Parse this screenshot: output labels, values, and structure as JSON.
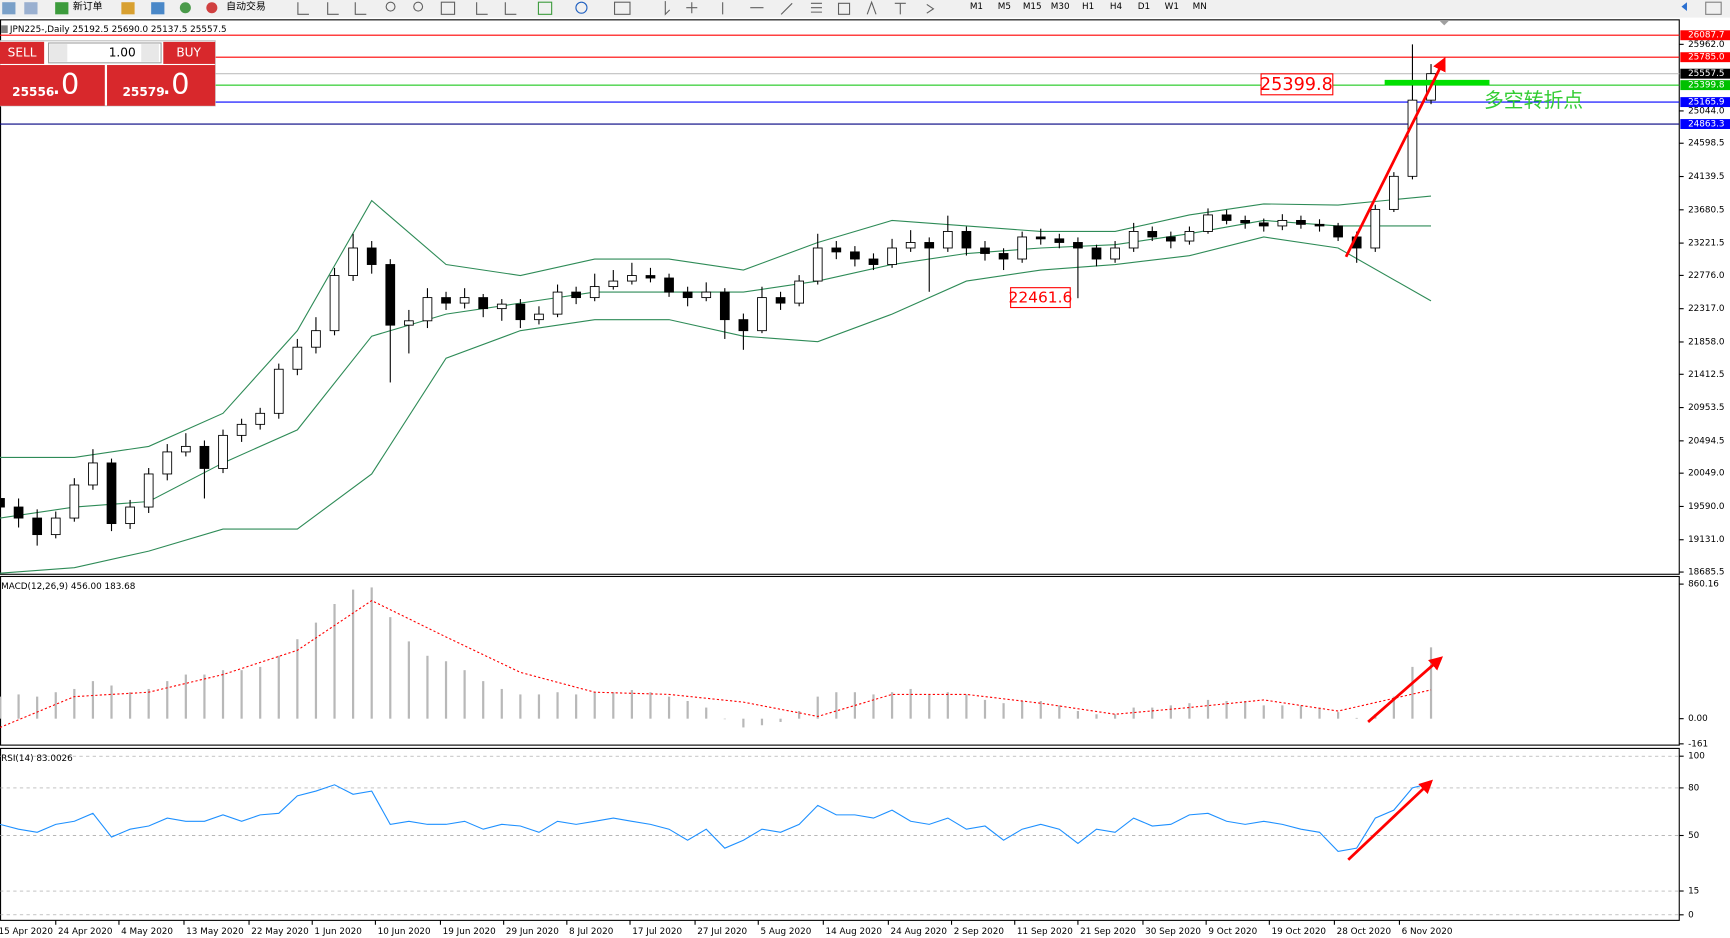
{
  "toolbar": {
    "new_order": "新订单",
    "auto_trading": "自动交易",
    "timeframes": [
      "M1",
      "M5",
      "M15",
      "M30",
      "H1",
      "H4",
      "D1",
      "W1",
      "MN"
    ]
  },
  "trade_panel": {
    "sell": "SELL",
    "buy": "BUY",
    "volume": "1.00",
    "bid_main": "25556",
    "bid_frac": ".0",
    "ask_main": "25579",
    "ask_frac": ".0"
  },
  "chart_data": [
    {
      "type": "candlestick",
      "title": "JPN225-,Daily  25192.5 25690.0 25137.5 25557.5",
      "xlim": [
        0,
        90
      ],
      "ylim": [
        18655,
        26300
      ],
      "xticks": [
        {
          "value": -0.2,
          "label": "15 Apr 2020"
        },
        {
          "value": 3,
          "label": "24 Apr 2020"
        },
        {
          "value": 6.4,
          "label": "4 May 2020"
        },
        {
          "value": 9.9,
          "label": "13 May 2020"
        },
        {
          "value": 13.4,
          "label": "22 May 2020"
        },
        {
          "value": 16.8,
          "label": "1 Jun 2020"
        },
        {
          "value": 20.2,
          "label": "10 Jun 2020"
        },
        {
          "value": 23.7,
          "label": "19 Jun 2020"
        },
        {
          "value": 27.1,
          "label": "29 Jun 2020"
        },
        {
          "value": 30.5,
          "label": "8 Jul 2020"
        },
        {
          "value": 33.9,
          "label": "17 Jul 2020"
        },
        {
          "value": 37.4,
          "label": "27 Jul 2020"
        },
        {
          "value": 40.8,
          "label": "5 Aug 2020"
        },
        {
          "value": 44.3,
          "label": "14 Aug 2020"
        },
        {
          "value": 47.8,
          "label": "24 Aug 2020"
        },
        {
          "value": 51.2,
          "label": "2 Sep 2020"
        },
        {
          "value": 54.6,
          "label": "11 Sep 2020"
        },
        {
          "value": 58,
          "label": "21 Sep 2020"
        },
        {
          "value": 61.5,
          "label": "30 Sep 2020"
        },
        {
          "value": 64.9,
          "label": "9 Oct 2020"
        },
        {
          "value": 68.3,
          "label": "19 Oct 2020"
        },
        {
          "value": 71.8,
          "label": "28 Oct 2020"
        },
        {
          "value": 75.3,
          "label": "6 Nov 2020"
        }
      ],
      "yticks": [
        {
          "value": 25962,
          "label": "25962.0"
        },
        {
          "value": 25044,
          "label": "25044.0"
        },
        24598.5,
        24139.5,
        23680.5,
        23221.5,
        {
          "value": 22776,
          "label": "22776.0"
        },
        {
          "value": 22317,
          "label": "22317.0"
        },
        {
          "value": 21858,
          "label": "21858.0"
        },
        21412.5,
        20953.5,
        20494.5,
        {
          "value": 20049,
          "label": "20049.0"
        },
        {
          "value": 19590,
          "label": "19590.0"
        },
        {
          "value": 19131,
          "label": "19131.0"
        },
        18685.5
      ],
      "candles": [
        [
          19700,
          19850,
          19450,
          19582
        ],
        [
          19582,
          19700,
          19300,
          19430
        ],
        [
          19430,
          19550,
          19050,
          19202
        ],
        [
          19202,
          19520,
          19150,
          19430
        ],
        [
          19430,
          19980,
          19380,
          19886
        ],
        [
          19886,
          20380,
          19820,
          20190
        ],
        [
          20190,
          20250,
          19250,
          19354
        ],
        [
          19354,
          19680,
          19280,
          19582
        ],
        [
          19582,
          20120,
          19500,
          20038
        ],
        [
          20038,
          20450,
          19950,
          20342
        ],
        [
          20342,
          20600,
          20280,
          20418
        ],
        [
          20418,
          20500,
          19700,
          20114
        ],
        [
          20114,
          20650,
          20050,
          20570
        ],
        [
          20570,
          20800,
          20480,
          20722
        ],
        [
          20722,
          20950,
          20650,
          20874
        ],
        [
          20874,
          21560,
          20800,
          21482
        ],
        [
          21482,
          21900,
          21400,
          21786
        ],
        [
          21786,
          22200,
          21700,
          22014
        ],
        [
          22014,
          22880,
          21950,
          22774
        ],
        [
          22774,
          23350,
          22700,
          23154
        ],
        [
          23154,
          23250,
          22800,
          22926
        ],
        [
          22926,
          23000,
          21300,
          22090
        ],
        [
          22090,
          22300,
          21700,
          22150
        ],
        [
          22150,
          22600,
          22050,
          22470
        ],
        [
          22470,
          22550,
          22300,
          22394
        ],
        [
          22394,
          22600,
          22320,
          22470
        ],
        [
          22470,
          22520,
          22200,
          22318
        ],
        [
          22318,
          22450,
          22150,
          22380
        ],
        [
          22380,
          22450,
          22050,
          22166
        ],
        [
          22166,
          22350,
          22100,
          22242
        ],
        [
          22242,
          22650,
          22200,
          22546
        ],
        [
          22546,
          22620,
          22380,
          22470
        ],
        [
          22470,
          22800,
          22420,
          22622
        ],
        [
          22622,
          22850,
          22580,
          22698
        ],
        [
          22698,
          22950,
          22650,
          22774
        ],
        [
          22774,
          22880,
          22680,
          22740
        ],
        [
          22740,
          22800,
          22480,
          22546
        ],
        [
          22546,
          22620,
          22350,
          22470
        ],
        [
          22470,
          22680,
          22420,
          22546
        ],
        [
          22546,
          22600,
          21900,
          22166
        ],
        [
          22166,
          22250,
          21750,
          22014
        ],
        [
          22014,
          22620,
          21980,
          22470
        ],
        [
          22470,
          22550,
          22300,
          22394
        ],
        [
          22394,
          22780,
          22350,
          22698
        ],
        [
          22698,
          23350,
          22650,
          23154
        ],
        [
          23154,
          23250,
          23000,
          23100
        ],
        [
          23100,
          23180,
          22900,
          23002
        ],
        [
          23002,
          23080,
          22850,
          22926
        ],
        [
          22926,
          23280,
          22880,
          23154
        ],
        [
          23154,
          23400,
          23100,
          23230
        ],
        [
          23230,
          23300,
          22550,
          23154
        ],
        [
          23154,
          23600,
          23100,
          23382
        ],
        [
          23382,
          23450,
          23050,
          23154
        ],
        [
          23154,
          23250,
          22980,
          23078
        ],
        [
          23078,
          23150,
          22850,
          23002
        ],
        [
          23002,
          23380,
          22950,
          23306
        ],
        [
          23306,
          23420,
          23200,
          23280
        ],
        [
          23280,
          23350,
          23150,
          23230
        ],
        [
          23230,
          23300,
          22461.6,
          23154
        ],
        [
          23154,
          23200,
          22900,
          23002
        ],
        [
          23002,
          23250,
          22950,
          23154
        ],
        [
          23154,
          23500,
          23100,
          23382
        ],
        [
          23382,
          23450,
          23250,
          23306
        ],
        [
          23306,
          23380,
          23150,
          23250
        ],
        [
          23250,
          23450,
          23200,
          23382
        ],
        [
          23382,
          23700,
          23350,
          23610
        ],
        [
          23610,
          23680,
          23480,
          23534
        ],
        [
          23534,
          23600,
          23420,
          23500
        ],
        [
          23500,
          23560,
          23380,
          23458
        ],
        [
          23458,
          23620,
          23400,
          23534
        ],
        [
          23534,
          23600,
          23420,
          23480
        ],
        [
          23480,
          23550,
          23380,
          23458
        ],
        [
          23458,
          23500,
          23250,
          23306
        ],
        [
          23306,
          23380,
          22950,
          23154
        ],
        [
          23154,
          23750,
          23100,
          23686
        ],
        [
          23686,
          24200,
          23650,
          24142
        ],
        [
          24142,
          25962,
          24100,
          25192.5
        ],
        [
          25192.5,
          25690,
          25137.5,
          25557.5
        ]
      ],
      "bands": {
        "color": "#2e8b57",
        "x": [
          0,
          4,
          8,
          12,
          16,
          20,
          24,
          28,
          32,
          36,
          40,
          44,
          48,
          52,
          56,
          60,
          64,
          68,
          72,
          77
        ],
        "upper": [
          20266,
          20266,
          20418,
          20874,
          22014,
          23808,
          22926,
          22774,
          23002,
          23002,
          22850,
          23230,
          23534,
          23458,
          23382,
          23382,
          23610,
          23762,
          23747,
          23869
        ],
        "middle": [
          19430,
          19582,
          19658,
          20190,
          20646,
          21938,
          22242,
          22394,
          22546,
          22546,
          22546,
          22698,
          22926,
          23078,
          23154,
          23200,
          23352,
          23534,
          23458,
          23458
        ],
        "lower": [
          18670,
          18746,
          18974,
          19278,
          19278,
          20038,
          21634,
          22014,
          22166,
          22166,
          21938,
          21862,
          22242,
          22698,
          22850,
          22926,
          23048,
          23306,
          23154,
          22425
        ]
      },
      "levels": [
        {
          "value": 26087.7,
          "color": "#ff0000",
          "line_color": "#ff0000"
        },
        {
          "value": 25785,
          "label": "25785.0",
          "color": "#ff0000",
          "line_color": "#ff0000"
        },
        {
          "value": 25557.5,
          "color": "#000000",
          "line_color": "#c0c0c0"
        },
        {
          "value": 25399.8,
          "color": "#00c000",
          "line_color": "#00c000"
        },
        {
          "value": 25165.9,
          "color": "#0000ff",
          "line_color": "#0000ff"
        },
        {
          "value": 24863.3,
          "color": "#0000ff",
          "line_color": "#000080"
        }
      ],
      "annotations": [
        {
          "text": "25399.8"
        },
        {
          "text": "22461.6"
        },
        {
          "text": "多空转折点"
        }
      ]
    },
    {
      "type": "macd",
      "title": "MACD(12,26,9) 456.00 183.68",
      "xlim": [
        0,
        90
      ],
      "ylim": [
        -169,
        909
      ],
      "yticks": [
        860.16,
        {
          "value": 0,
          "label": "0.00"
        },
        -161
      ],
      "histogram": {
        "color": "#b8b8b8",
        "values": [
          141,
          155,
          141,
          169,
          190,
          240,
          212,
          169,
          190,
          240,
          282,
          282,
          310,
          310,
          331,
          402,
          508,
          614,
          733,
          825,
          839,
          649,
          494,
          402,
          367,
          310,
          240,
          190,
          155,
          155,
          169,
          155,
          169,
          169,
          183,
          169,
          141,
          113,
          71,
          0,
          -56,
          -42,
          -21,
          49,
          141,
          169,
          169,
          155,
          169,
          190,
          155,
          169,
          155,
          120,
          99,
          113,
          113,
          85,
          49,
          28,
          28,
          71,
          71,
          85,
          99,
          120,
          113,
          113,
          85,
          85,
          85,
          71,
          42,
          5,
          28,
          141,
          331,
          456
        ]
      },
      "signal": {
        "color": "#ff0000",
        "x": [
          0,
          4,
          8,
          12,
          16,
          20,
          24,
          28,
          32,
          36,
          40,
          44,
          48,
          52,
          56,
          60,
          64,
          68,
          72,
          77
        ],
        "values": [
          -56,
          141,
          169,
          282,
          437,
          755,
          522,
          296,
          169,
          155,
          106,
          14,
          155,
          155,
          99,
          28,
          71,
          120,
          49,
          183.68
        ]
      }
    },
    {
      "type": "rsi",
      "title": "RSI(14) 83.0026",
      "xlim": [
        0,
        90
      ],
      "ylim": [
        -3.5,
        104.9
      ],
      "yticks": [
        100,
        80,
        50,
        15,
        0
      ],
      "series": {
        "color": "#1e90ff",
        "values": [
          57,
          54,
          52,
          57,
          59,
          64,
          49,
          54,
          56,
          61,
          59,
          59,
          63,
          59,
          63,
          64,
          75,
          78,
          82,
          76,
          78,
          57,
          59,
          57,
          57,
          59,
          54,
          57,
          56,
          52,
          59,
          57,
          59,
          61,
          59,
          57,
          54,
          47,
          54,
          42,
          47,
          54,
          52,
          57,
          69,
          63,
          63,
          61,
          66,
          59,
          57,
          61,
          54,
          56,
          47,
          54,
          57,
          54,
          45,
          54,
          52,
          61,
          56,
          57,
          63,
          64,
          59,
          57,
          59,
          57,
          54,
          52,
          40,
          42,
          61,
          66,
          80,
          83.0026
        ]
      }
    }
  ]
}
